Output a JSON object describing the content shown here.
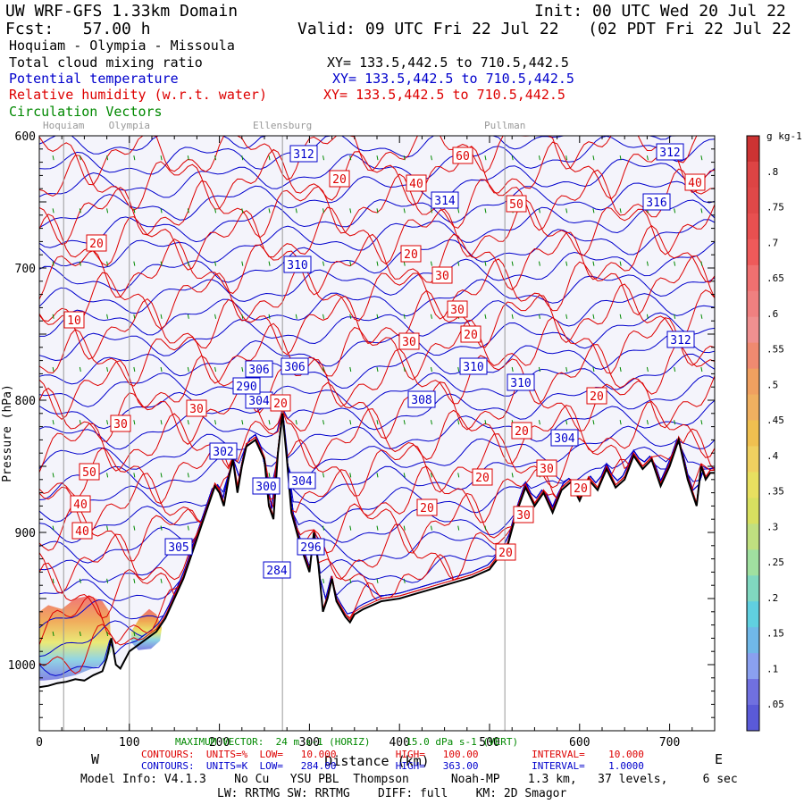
{
  "header": {
    "line1_left": "UW WRF-GFS 1.33km Domain",
    "line1_right": "Init: 00 UTC Wed 20 Jul 22",
    "line2_left": "Fcst:   57.00 h",
    "line2_right": "Valid: 09 UTC Fri 22 Jul 22   (02 PDT Fri 22 Jul 22  )",
    "line3": "Hoquiam - Olympia - Missoula",
    "var1": "Total cloud mixing ratio",
    "var1_xy": "XY= 133.5,442.5 to 710.5,442.5",
    "var2": "Potential temperature",
    "var2_xy": "XY= 133.5,442.5 to 710.5,442.5",
    "var3": "Relative humidity (w.r.t. water)",
    "var3_xy": "XY= 133.5,442.5 to 710.5,442.5",
    "var4": "Circulation Vectors"
  },
  "colors": {
    "potential_temperature": "#0000cc",
    "relative_humidity": "#dd0000",
    "vectors": "#008800",
    "terrain": "#000000",
    "background": "#f4f4fb",
    "reference_lines": "#999999"
  },
  "chart_data": {
    "type": "cross-section",
    "x": {
      "label": "Distance (km)",
      "range": [
        0,
        750
      ],
      "ticks": [
        0,
        100,
        200,
        300,
        400,
        500,
        600,
        700
      ],
      "tick_labels": [
        "0",
        "100",
        "200",
        "300",
        "400",
        "500",
        "600",
        "700"
      ]
    },
    "y": {
      "label": "Pressure (hPa)",
      "range": [
        1050,
        600
      ],
      "ticks": [
        600,
        700,
        800,
        900,
        1000
      ],
      "tick_labels": [
        "600",
        "700",
        "800",
        "900",
        "1000"
      ]
    },
    "direction_labels": [
      "W",
      "E"
    ],
    "locations": [
      {
        "name": "Hoquiam",
        "km": 27
      },
      {
        "name": "Olympia",
        "km": 100
      },
      {
        "name": "Ellensburg",
        "km": 270
      },
      {
        "name": "Pullman",
        "km": 517
      }
    ],
    "terrain_profile": [
      [
        0,
        1017
      ],
      [
        10,
        1016
      ],
      [
        20,
        1014
      ],
      [
        30,
        1013
      ],
      [
        40,
        1011
      ],
      [
        50,
        1012
      ],
      [
        60,
        1008
      ],
      [
        70,
        1005
      ],
      [
        75,
        995
      ],
      [
        80,
        980
      ],
      [
        85,
        1000
      ],
      [
        90,
        1003
      ],
      [
        100,
        990
      ],
      [
        110,
        985
      ],
      [
        120,
        980
      ],
      [
        130,
        975
      ],
      [
        140,
        965
      ],
      [
        150,
        950
      ],
      [
        160,
        935
      ],
      [
        170,
        915
      ],
      [
        180,
        895
      ],
      [
        190,
        875
      ],
      [
        195,
        865
      ],
      [
        200,
        870
      ],
      [
        205,
        880
      ],
      [
        210,
        860
      ],
      [
        215,
        845
      ],
      [
        220,
        870
      ],
      [
        225,
        850
      ],
      [
        230,
        835
      ],
      [
        240,
        830
      ],
      [
        250,
        845
      ],
      [
        255,
        880
      ],
      [
        260,
        890
      ],
      [
        265,
        840
      ],
      [
        270,
        810
      ],
      [
        275,
        845
      ],
      [
        280,
        885
      ],
      [
        290,
        910
      ],
      [
        300,
        930
      ],
      [
        305,
        900
      ],
      [
        310,
        925
      ],
      [
        315,
        960
      ],
      [
        320,
        950
      ],
      [
        325,
        935
      ],
      [
        330,
        952
      ],
      [
        340,
        964
      ],
      [
        345,
        968
      ],
      [
        350,
        962
      ],
      [
        360,
        958
      ],
      [
        380,
        952
      ],
      [
        400,
        950
      ],
      [
        420,
        946
      ],
      [
        440,
        942
      ],
      [
        460,
        938
      ],
      [
        480,
        934
      ],
      [
        500,
        928
      ],
      [
        520,
        910
      ],
      [
        530,
        885
      ],
      [
        540,
        866
      ],
      [
        550,
        880
      ],
      [
        560,
        870
      ],
      [
        570,
        885
      ],
      [
        580,
        868
      ],
      [
        590,
        862
      ],
      [
        600,
        876
      ],
      [
        610,
        860
      ],
      [
        620,
        868
      ],
      [
        630,
        852
      ],
      [
        640,
        866
      ],
      [
        650,
        860
      ],
      [
        660,
        842
      ],
      [
        670,
        852
      ],
      [
        680,
        845
      ],
      [
        690,
        865
      ],
      [
        700,
        850
      ],
      [
        710,
        830
      ],
      [
        720,
        860
      ],
      [
        730,
        880
      ],
      [
        735,
        850
      ],
      [
        740,
        860
      ],
      [
        745,
        855
      ],
      [
        750,
        855
      ]
    ],
    "potential_temperature": {
      "units": "K",
      "low": 284.0,
      "high": 363.0,
      "interval": 1.0,
      "labels": [
        "312",
        "312",
        "316",
        "314",
        "310",
        "306",
        "306",
        "308",
        "310",
        "310",
        "312",
        "304",
        "304",
        "300",
        "304",
        "305",
        "284",
        "296",
        "302",
        "290"
      ]
    },
    "relative_humidity": {
      "units": "%",
      "low": 10.0,
      "high": 100.0,
      "interval": 10.0,
      "labels": [
        "60",
        "20",
        "40",
        "50",
        "40",
        "20",
        "20",
        "30",
        "30",
        "20",
        "10",
        "30",
        "30",
        "30",
        "20",
        "20",
        "50",
        "40",
        "40",
        "20",
        "20",
        "20",
        "20",
        "30",
        "30",
        "20"
      ]
    },
    "cloud_mixing_ratio": {
      "units": "g kg-1",
      "colorbar_ticks": [
        "g kg-1",
        ".8",
        ".75",
        ".7",
        ".65",
        ".6",
        ".55",
        ".5",
        ".45",
        ".4",
        ".35",
        ".3",
        ".25",
        ".2",
        ".15",
        ".1",
        ".05"
      ]
    },
    "vectors": {
      "max_label": "MAXIMUM VECTOR:  24 m s-1 (HORIZ)      15.0 dPa s-1 (VERT)"
    }
  },
  "footer": {
    "rh_contours": "CONTOURS:  UNITS=%  LOW=   10.000          HIGH=   100.00         INTERVAL=    10.000",
    "th_contours": "CONTOURS:  UNITS=K  LOW=   284.00          HIGH=   363.00         INTERVAL=    1.0000",
    "model_info": "Model Info: V4.1.3    No Cu   YSU PBL  Thompson      Noah-MP    1.3 km,   37 levels,     6 sec",
    "model_info2": "LW: RRTMG SW: RRTMG    DIFF: full    KM: 2D Smagor"
  }
}
